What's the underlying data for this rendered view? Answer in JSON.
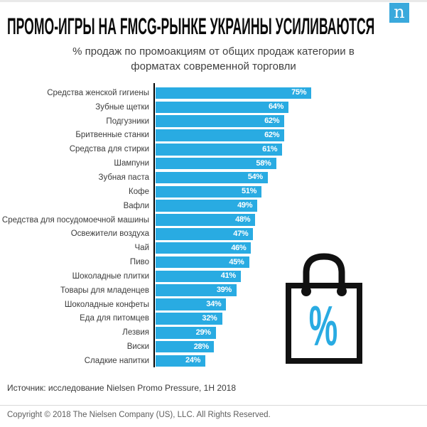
{
  "header": {
    "title": "ПРОМО-ИГРЫ НА FMCG-РЫНКЕ УКРАИНЫ УСИЛИВАЮТСЯ",
    "logo": {
      "letter": "n",
      "color": "#3aa9dc"
    }
  },
  "subtitle": "% продаж по промоакциям от общих продаж категории в форматах современной торговли",
  "chart_data": {
    "type": "bar",
    "orientation": "horizontal",
    "title": "% продаж по промоакциям от общих продаж категории в форматах современной торговли",
    "categories": [
      "Средства женской гигиены",
      "Зубные щетки",
      "Подгузники",
      "Бритвенные станки",
      "Средства для стирки",
      "Шампуни",
      "Зубная паста",
      "Кофе",
      "Вафли",
      "Средства для посудомоечной машины",
      "Освежители воздуха",
      "Чай",
      "Пиво",
      "Шоколадные плитки",
      "Товары для младенцев",
      "Шоколадные конфеты",
      "Еда для питомцев",
      "Лезвия",
      "Виски",
      "Сладкие напитки"
    ],
    "values": [
      75,
      64,
      62,
      62,
      61,
      58,
      54,
      51,
      49,
      48,
      47,
      46,
      45,
      41,
      39,
      34,
      32,
      29,
      28,
      24
    ],
    "value_labels": [
      "75%",
      "64%",
      "62%",
      "62%",
      "61%",
      "58%",
      "54%",
      "51%",
      "49%",
      "48%",
      "47%",
      "46%",
      "45%",
      "41%",
      "39%",
      "34%",
      "32%",
      "29%",
      "28%",
      "24%"
    ],
    "xlim": [
      0,
      78
    ],
    "bar_color": "#29abe2",
    "value_label_color": "#ffffff",
    "axis_color": "#000000",
    "grid": false,
    "legend": false
  },
  "bag_icon": {
    "symbol": "%",
    "symbol_color": "#29abe2",
    "outline_color": "#111111"
  },
  "footer": {
    "source": "Источник: исследование Nielsen Promo Pressure, 1H 2018",
    "copyright": "Copyright © 2018 The Nielsen Company (US), LLC. All Rights Reserved."
  }
}
